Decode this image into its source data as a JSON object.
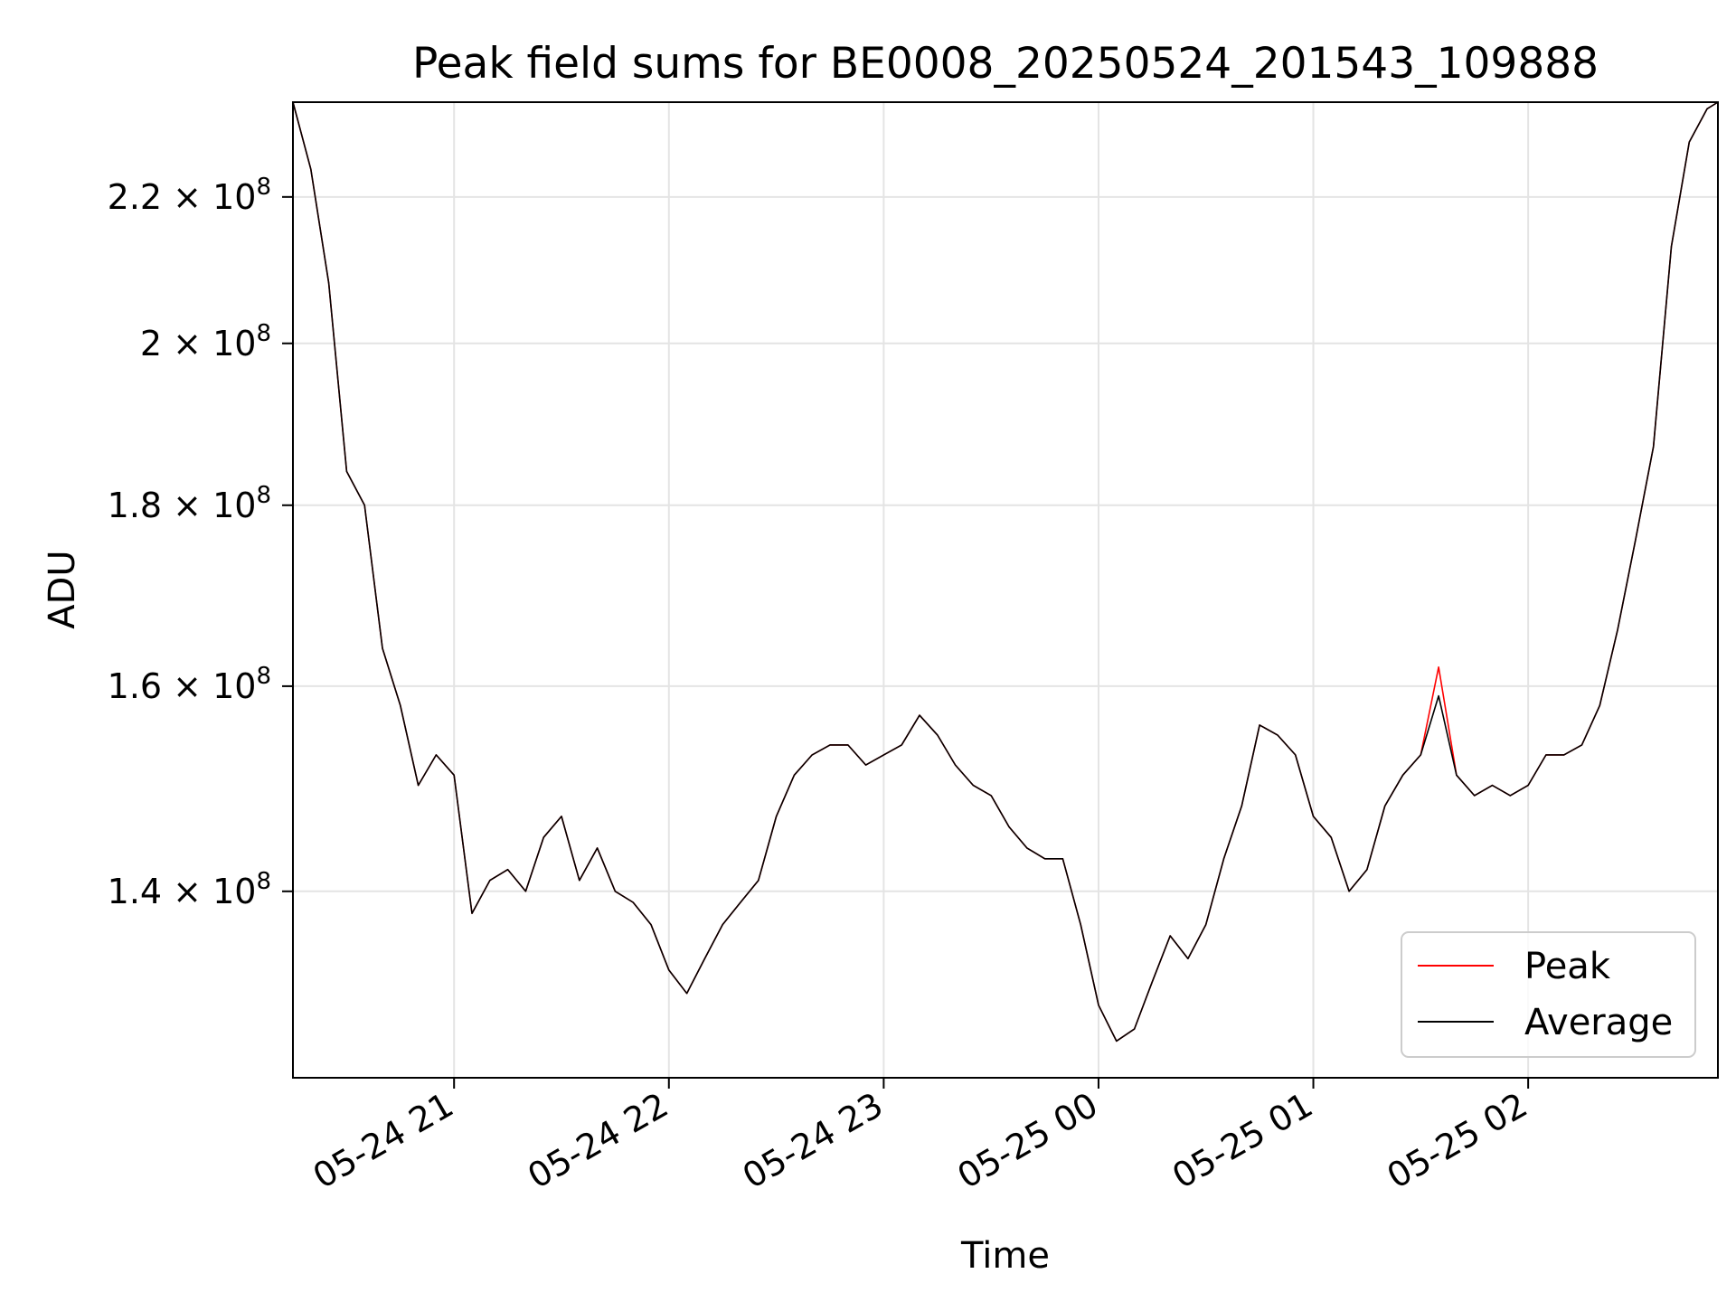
{
  "chart_data": {
    "type": "line",
    "title": "Peak field sums for BE0008_20250524_201543_109888",
    "xlabel": "Time",
    "ylabel": "ADU",
    "yscale": "log",
    "grid": true,
    "legend_position": "lower right",
    "xlim": [
      "2025-05-24 20:15",
      "2025-05-25 02:53"
    ],
    "ylim": [
      124000000,
      234000000
    ],
    "x_ticks": [
      {
        "value": "2025-05-24 21:00",
        "label": "05-24 21"
      },
      {
        "value": "2025-05-24 22:00",
        "label": "05-24 22"
      },
      {
        "value": "2025-05-24 23:00",
        "label": "05-24 23"
      },
      {
        "value": "2025-05-25 00:00",
        "label": "05-25 00"
      },
      {
        "value": "2025-05-25 01:00",
        "label": "05-25 01"
      },
      {
        "value": "2025-05-25 02:00",
        "label": "05-25 02"
      }
    ],
    "y_ticks": [
      {
        "value": 140000000,
        "mantissa": "1.4",
        "base": "10",
        "exponent": "8"
      },
      {
        "value": 160000000,
        "mantissa": "1.6",
        "base": "10",
        "exponent": "8"
      },
      {
        "value": 180000000,
        "mantissa": "1.8",
        "base": "10",
        "exponent": "8"
      },
      {
        "value": 200000000,
        "mantissa": "2",
        "base": "10",
        "exponent": "8"
      },
      {
        "value": 220000000,
        "mantissa": "2.2",
        "base": "10",
        "exponent": "8"
      }
    ],
    "x": [
      "2025-05-24 20:15",
      "2025-05-24 20:20",
      "2025-05-24 20:25",
      "2025-05-24 20:30",
      "2025-05-24 20:35",
      "2025-05-24 20:40",
      "2025-05-24 20:45",
      "2025-05-24 20:50",
      "2025-05-24 20:55",
      "2025-05-24 21:00",
      "2025-05-24 21:05",
      "2025-05-24 21:10",
      "2025-05-24 21:15",
      "2025-05-24 21:20",
      "2025-05-24 21:25",
      "2025-05-24 21:30",
      "2025-05-24 21:35",
      "2025-05-24 21:40",
      "2025-05-24 21:45",
      "2025-05-24 21:50",
      "2025-05-24 21:55",
      "2025-05-24 22:00",
      "2025-05-24 22:05",
      "2025-05-24 22:10",
      "2025-05-24 22:15",
      "2025-05-24 22:20",
      "2025-05-24 22:25",
      "2025-05-24 22:30",
      "2025-05-24 22:35",
      "2025-05-24 22:40",
      "2025-05-24 22:45",
      "2025-05-24 22:50",
      "2025-05-24 22:55",
      "2025-05-24 23:00",
      "2025-05-24 23:05",
      "2025-05-24 23:10",
      "2025-05-24 23:15",
      "2025-05-24 23:20",
      "2025-05-24 23:25",
      "2025-05-24 23:30",
      "2025-05-24 23:35",
      "2025-05-24 23:40",
      "2025-05-24 23:45",
      "2025-05-24 23:50",
      "2025-05-24 23:55",
      "2025-05-25 00:00",
      "2025-05-25 00:05",
      "2025-05-25 00:10",
      "2025-05-25 00:15",
      "2025-05-25 00:20",
      "2025-05-25 00:25",
      "2025-05-25 00:30",
      "2025-05-25 00:35",
      "2025-05-25 00:40",
      "2025-05-25 00:45",
      "2025-05-25 00:50",
      "2025-05-25 00:55",
      "2025-05-25 01:00",
      "2025-05-25 01:05",
      "2025-05-25 01:10",
      "2025-05-25 01:15",
      "2025-05-25 01:20",
      "2025-05-25 01:25",
      "2025-05-25 01:30",
      "2025-05-25 01:35",
      "2025-05-25 01:40",
      "2025-05-25 01:45",
      "2025-05-25 01:50",
      "2025-05-25 01:55",
      "2025-05-25 02:00",
      "2025-05-25 02:05",
      "2025-05-25 02:10",
      "2025-05-25 02:15",
      "2025-05-25 02:20",
      "2025-05-25 02:25",
      "2025-05-25 02:30",
      "2025-05-25 02:35",
      "2025-05-25 02:40",
      "2025-05-25 02:45",
      "2025-05-25 02:50",
      "2025-05-25 02:53"
    ],
    "series": [
      {
        "name": "Peak",
        "color": "#ff0000",
        "values": [
          234000000,
          224000000,
          208000000,
          184000000,
          180000000,
          164000000,
          158000000,
          150000000,
          153000000,
          151000000,
          138000000,
          141000000,
          142000000,
          140000000,
          145000000,
          147000000,
          141000000,
          144000000,
          140000000,
          139000000,
          137000000,
          133000000,
          131000000,
          134000000,
          137000000,
          139000000,
          141000000,
          147000000,
          151000000,
          153000000,
          154000000,
          154000000,
          152000000,
          153000000,
          154000000,
          157000000,
          155000000,
          152000000,
          150000000,
          149000000,
          146000000,
          144000000,
          143000000,
          143000000,
          137000000,
          130000000,
          127000000,
          128000000,
          132000000,
          136000000,
          134000000,
          137000000,
          143000000,
          148000000,
          156000000,
          155000000,
          153000000,
          147000000,
          145000000,
          140000000,
          142000000,
          148000000,
          151000000,
          153000000,
          162000000,
          151000000,
          149000000,
          150000000,
          149000000,
          150000000,
          153000000,
          153000000,
          154000000,
          158000000,
          166000000,
          176000000,
          187000000,
          213000000,
          228000000,
          233000000,
          234000000
        ]
      },
      {
        "name": "Average",
        "color": "#000000",
        "values": [
          234000000,
          224000000,
          208000000,
          184000000,
          180000000,
          164000000,
          158000000,
          150000000,
          153000000,
          151000000,
          138000000,
          141000000,
          142000000,
          140000000,
          145000000,
          147000000,
          141000000,
          144000000,
          140000000,
          139000000,
          137000000,
          133000000,
          131000000,
          134000000,
          137000000,
          139000000,
          141000000,
          147000000,
          151000000,
          153000000,
          154000000,
          154000000,
          152000000,
          153000000,
          154000000,
          157000000,
          155000000,
          152000000,
          150000000,
          149000000,
          146000000,
          144000000,
          143000000,
          143000000,
          137000000,
          130000000,
          127000000,
          128000000,
          132000000,
          136000000,
          134000000,
          137000000,
          143000000,
          148000000,
          156000000,
          155000000,
          153000000,
          147000000,
          145000000,
          140000000,
          142000000,
          148000000,
          151000000,
          153000000,
          159000000,
          151000000,
          149000000,
          150000000,
          149000000,
          150000000,
          153000000,
          153000000,
          154000000,
          158000000,
          166000000,
          176000000,
          187000000,
          213000000,
          228000000,
          233000000,
          234000000
        ]
      }
    ]
  }
}
